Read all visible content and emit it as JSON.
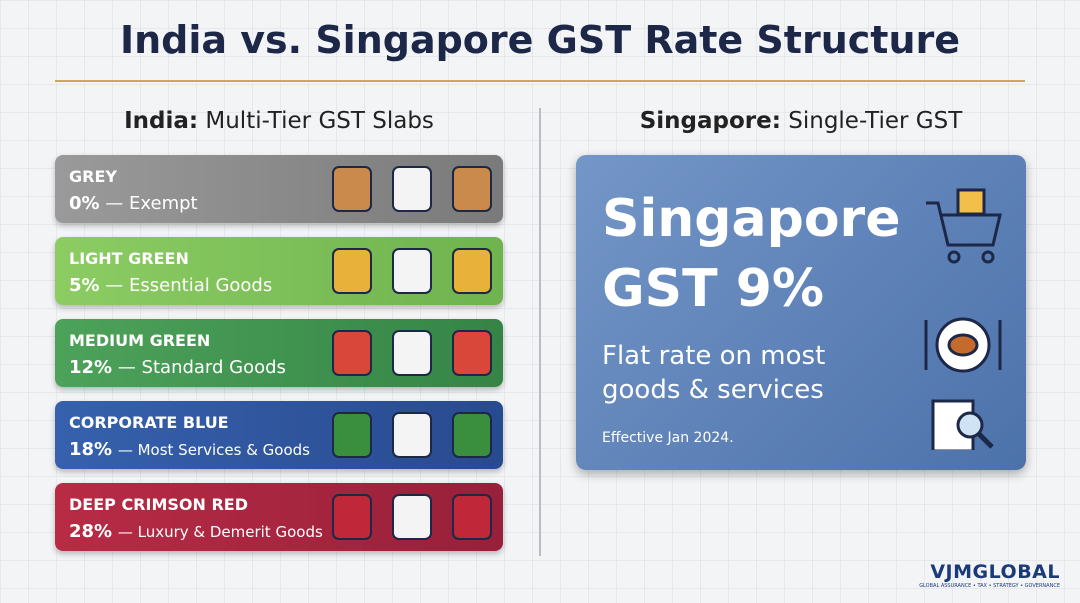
{
  "header": {
    "title": "India vs. Singapore GST Rate Structure"
  },
  "india": {
    "heading_strong": "India:",
    "heading_rest": "Multi-Tier GST Slabs",
    "slabs": [
      {
        "name": "GREY",
        "rate": "0%",
        "label": "— Exempt"
      },
      {
        "name": "LIGHT GREEN",
        "rate": "5%",
        "label": "— Essential Goods"
      },
      {
        "name": "MEDIUM GREEN",
        "rate": "12%",
        "label": "— Standard Goods"
      },
      {
        "name": "CORPORATE BLUE",
        "rate": "18%",
        "label": "— Most Services & Goods"
      },
      {
        "name": "DEEP CRIMSON RED",
        "rate": "28%",
        "label": "— Luxury & Demerit Goods"
      }
    ]
  },
  "singapore": {
    "heading_strong": "Singapore:",
    "heading_rest": "Single-Tier GST",
    "card_line1": "Singapore",
    "card_line2": "GST 9%",
    "description": "Flat rate on most goods & services",
    "effective": "Effective Jan 2024."
  },
  "logo": {
    "name": "VJMGLOBAL",
    "tagline": "GLOBAL ASSURANCE • TAX • STRATEGY • GOVERNANCE"
  }
}
